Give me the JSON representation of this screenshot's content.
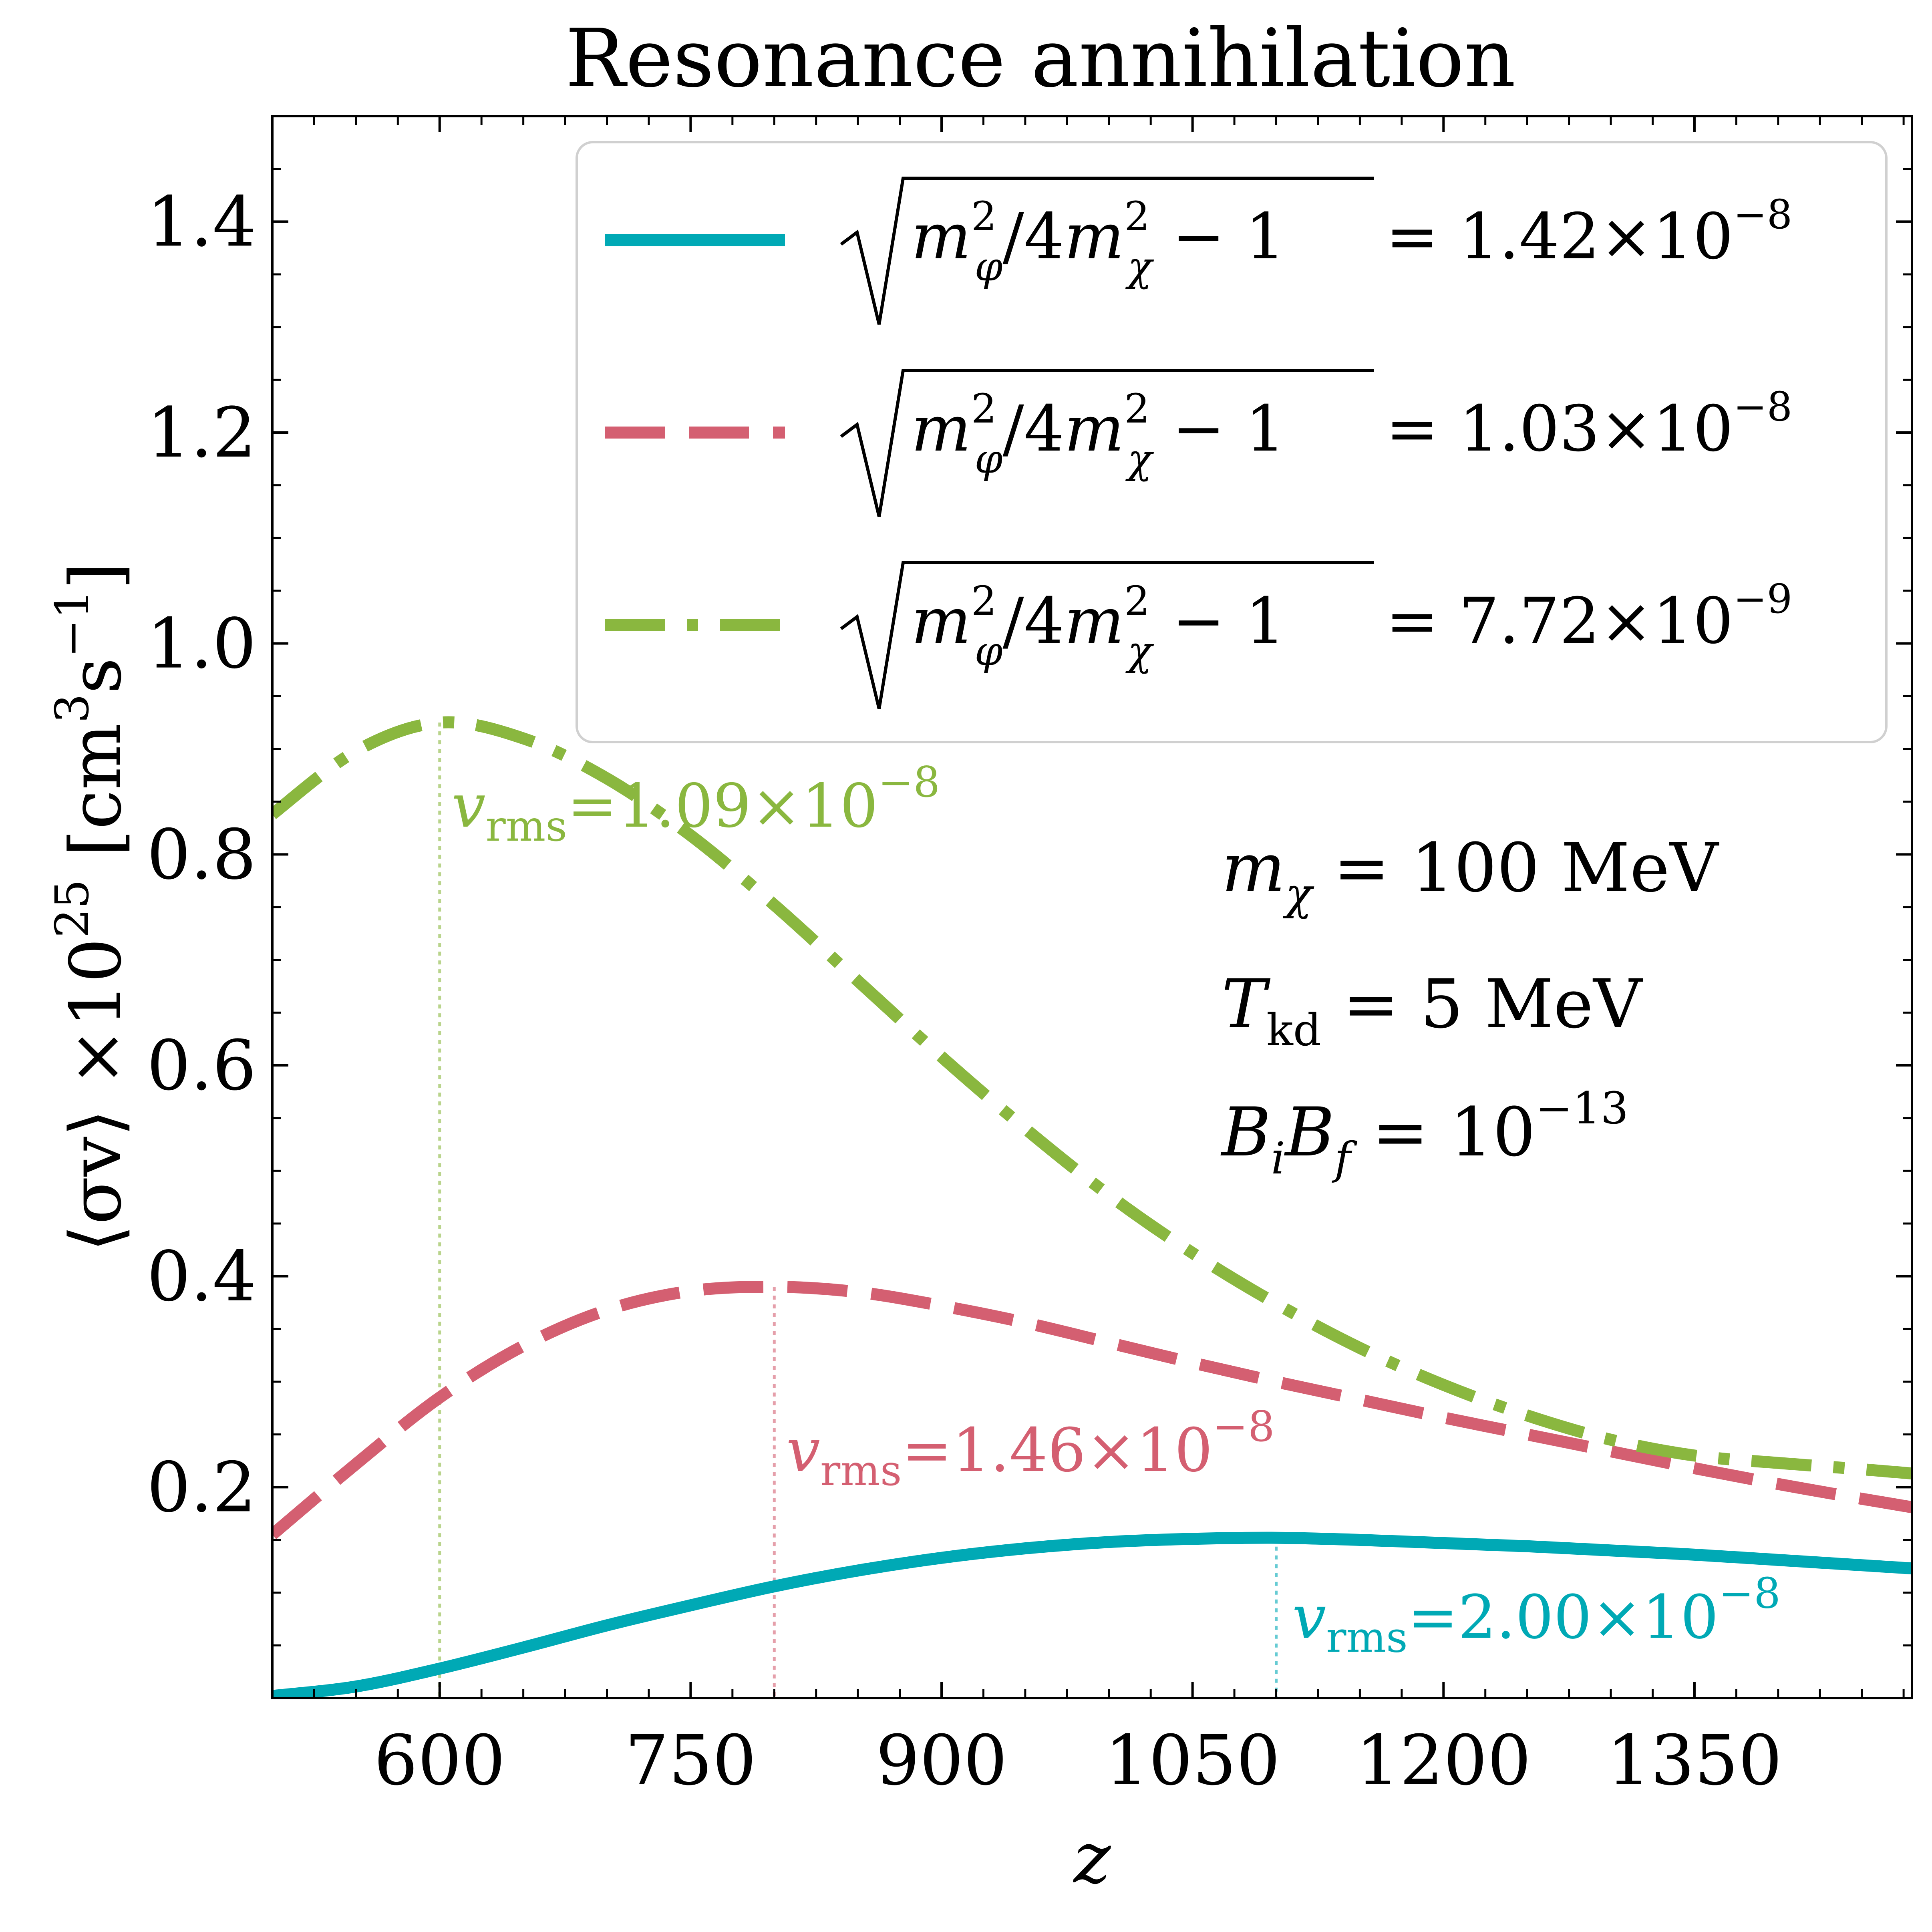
{
  "chart_data": {
    "type": "line",
    "title": "Resonance annihilation",
    "xlabel": "z",
    "ylabel": "⟨σv⟩ ×10",
    "ylabel_exponent": "25",
    "ylabel_unit_open": " [cm",
    "ylabel_unit_exp1": "3",
    "ylabel_unit_mid": "s",
    "ylabel_unit_exp2": "−1",
    "ylabel_unit_close": "]",
    "xlim": [
      500,
      1480
    ],
    "ylim": [
      0.0,
      1.5
    ],
    "xticks": [
      600,
      750,
      900,
      1050,
      1200,
      1350
    ],
    "xtick_labels": [
      "600",
      "750",
      "900",
      "1050",
      "1200",
      "1350"
    ],
    "yticks": [
      0.2,
      0.4,
      0.6,
      0.8,
      1.0,
      1.2,
      1.4
    ],
    "ytick_labels": [
      "0.2",
      "0.4",
      "0.6",
      "0.8",
      "1.0",
      "1.2",
      "1.4"
    ],
    "legend_position": "top-right",
    "series": [
      {
        "name": "√(m_φ²/4m_χ² − 1) = 1.42×10⁻⁸",
        "legend_value": "= 1.42×10",
        "legend_exp": "−8",
        "color": "#00a9b5",
        "style": "solid",
        "x": [
          500,
          550,
          600,
          650,
          700,
          750,
          800,
          850,
          900,
          950,
          1000,
          1050,
          1100,
          1150,
          1200,
          1250,
          1300,
          1350,
          1400,
          1450,
          1480
        ],
        "y": [
          0.002,
          0.011,
          0.028,
          0.048,
          0.069,
          0.088,
          0.106,
          0.121,
          0.133,
          0.142,
          0.148,
          0.151,
          0.152,
          0.15,
          0.147,
          0.144,
          0.14,
          0.136,
          0.131,
          0.126,
          0.123
        ],
        "peak": {
          "x": 1100,
          "y": 0.152,
          "label": "v",
          "label_sub": "rms",
          "label_value": "=2.00×10",
          "label_exp": "−8"
        }
      },
      {
        "name": "√(m_φ²/4m_χ² − 1) = 1.03×10⁻⁸",
        "legend_value": "= 1.03×10",
        "legend_exp": "−8",
        "color": "#d45f71",
        "style": "dashed",
        "x": [
          500,
          550,
          600,
          650,
          700,
          750,
          800,
          850,
          900,
          950,
          1000,
          1050,
          1100,
          1150,
          1200,
          1250,
          1300,
          1350,
          1400,
          1450,
          1480
        ],
        "y": [
          0.155,
          0.222,
          0.285,
          0.334,
          0.368,
          0.386,
          0.39,
          0.385,
          0.372,
          0.356,
          0.337,
          0.318,
          0.3,
          0.283,
          0.266,
          0.25,
          0.234,
          0.218,
          0.203,
          0.189,
          0.181
        ],
        "peak": {
          "x": 800,
          "y": 0.39,
          "label": "v",
          "label_sub": "rms",
          "label_value": "=1.46×10",
          "label_exp": "−8"
        }
      },
      {
        "name": "√(m_φ²/4m_χ² − 1) = 7.72×10⁻⁹",
        "legend_value": "= 7.72×10",
        "legend_exp": "−9",
        "color": "#8ab73f",
        "style": "dashdot",
        "x": [
          500,
          550,
          600,
          650,
          700,
          750,
          800,
          850,
          900,
          950,
          1000,
          1050,
          1100,
          1150,
          1200,
          1250,
          1300,
          1350,
          1400,
          1450,
          1480
        ],
        "y": [
          0.838,
          0.898,
          0.925,
          0.91,
          0.872,
          0.818,
          0.752,
          0.68,
          0.608,
          0.54,
          0.477,
          0.422,
          0.374,
          0.332,
          0.297,
          0.268,
          0.245,
          0.23,
          0.223,
          0.217,
          0.213
        ],
        "peak": {
          "x": 600,
          "y": 0.925,
          "label": "v",
          "label_sub": "rms",
          "label_value": "=1.09×10",
          "label_exp": "−8"
        }
      }
    ],
    "annotations": [
      {
        "main": "m",
        "sub": "χ",
        "rest": " = 100 MeV"
      },
      {
        "main": "T",
        "sub": "kd",
        "rest": " = 5 MeV"
      },
      {
        "main": "B",
        "sub": "i",
        "main2": "B",
        "sub2": "f",
        "rest": " = 10",
        "sup": "−13"
      }
    ]
  }
}
